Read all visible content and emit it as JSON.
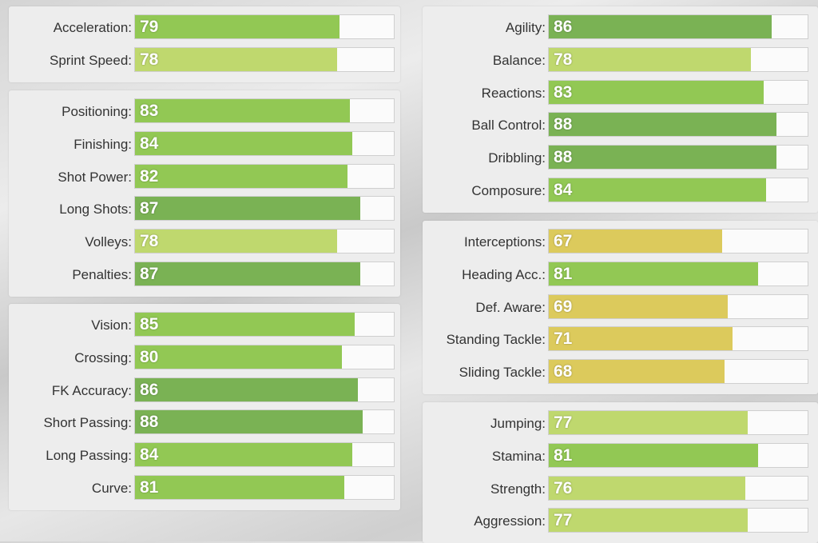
{
  "colors": {
    "tier_high": "#7ab254",
    "tier_good": "#92c854",
    "tier_mid": "#bfd86e",
    "tier_avg": "#dcca5c"
  },
  "groups": [
    {
      "id": "pace",
      "stats": [
        {
          "label": "Acceleration:",
          "value": 79
        },
        {
          "label": "Sprint Speed:",
          "value": 78
        }
      ]
    },
    {
      "id": "shooting",
      "stats": [
        {
          "label": "Positioning:",
          "value": 83
        },
        {
          "label": "Finishing:",
          "value": 84
        },
        {
          "label": "Shot Power:",
          "value": 82
        },
        {
          "label": "Long Shots:",
          "value": 87
        },
        {
          "label": "Volleys:",
          "value": 78
        },
        {
          "label": "Penalties:",
          "value": 87
        }
      ]
    },
    {
      "id": "passing",
      "stats": [
        {
          "label": "Vision:",
          "value": 85
        },
        {
          "label": "Crossing:",
          "value": 80
        },
        {
          "label": "FK Accuracy:",
          "value": 86
        },
        {
          "label": "Short Passing:",
          "value": 88
        },
        {
          "label": "Long Passing:",
          "value": 84
        },
        {
          "label": "Curve:",
          "value": 81
        }
      ]
    },
    {
      "id": "dribbling",
      "stats": [
        {
          "label": "Agility:",
          "value": 86
        },
        {
          "label": "Balance:",
          "value": 78
        },
        {
          "label": "Reactions:",
          "value": 83
        },
        {
          "label": "Ball Control:",
          "value": 88
        },
        {
          "label": "Dribbling:",
          "value": 88
        },
        {
          "label": "Composure:",
          "value": 84
        }
      ]
    },
    {
      "id": "defending",
      "stats": [
        {
          "label": "Interceptions:",
          "value": 67
        },
        {
          "label": "Heading Acc.:",
          "value": 81
        },
        {
          "label": "Def. Aware:",
          "value": 69
        },
        {
          "label": "Standing Tackle:",
          "value": 71
        },
        {
          "label": "Sliding Tackle:",
          "value": 68
        }
      ]
    },
    {
      "id": "physical",
      "stats": [
        {
          "label": "Jumping:",
          "value": 77
        },
        {
          "label": "Stamina:",
          "value": 81
        },
        {
          "label": "Strength:",
          "value": 76
        },
        {
          "label": "Aggression:",
          "value": 77
        }
      ]
    }
  ]
}
